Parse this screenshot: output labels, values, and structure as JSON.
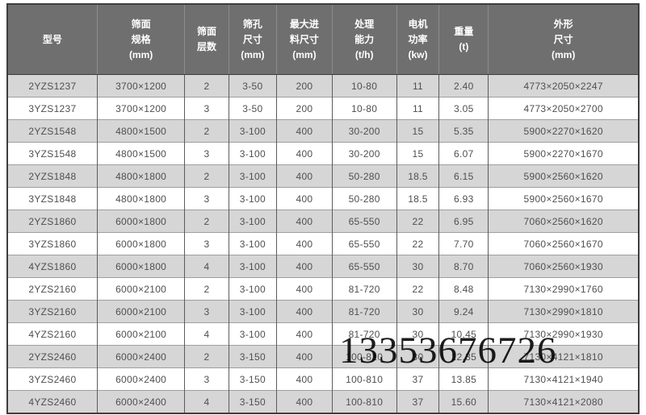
{
  "colors": {
    "header_bg": "#6f6f6f",
    "header_text": "#ffffff",
    "row_odd_bg": "#d6d6d6",
    "row_even_bg": "#ffffff",
    "cell_text": "#4f4f4f",
    "watermark_color": "#000000"
  },
  "watermark": {
    "text": "13353676726"
  },
  "table": {
    "columns": [
      {
        "id": "model",
        "label_lines": [
          "型号"
        ]
      },
      {
        "id": "screen-spec",
        "label_lines": [
          "筛面",
          "规格",
          "(mm)"
        ]
      },
      {
        "id": "deck-count",
        "label_lines": [
          "筛面",
          "层数"
        ]
      },
      {
        "id": "mesh-size",
        "label_lines": [
          "筛孔",
          "尺寸",
          "(mm)"
        ]
      },
      {
        "id": "max-feed",
        "label_lines": [
          "最大进",
          "料尺寸",
          "(mm)"
        ]
      },
      {
        "id": "capacity",
        "label_lines": [
          "处理",
          "能力",
          "(t/h)"
        ]
      },
      {
        "id": "motor-power",
        "label_lines": [
          "电机",
          "功率",
          "(kw)"
        ]
      },
      {
        "id": "weight",
        "label_lines": [
          "重量",
          "(t)"
        ]
      },
      {
        "id": "dimensions",
        "label_lines": [
          "外形",
          "尺寸",
          "(mm)"
        ]
      }
    ],
    "rows": [
      [
        "2YZS1237",
        "3700×1200",
        "2",
        "3-50",
        "200",
        "10-80",
        "11",
        "2.40",
        "4773×2050×2247"
      ],
      [
        "3YZS1237",
        "3700×1200",
        "3",
        "3-50",
        "200",
        "10-80",
        "11",
        "3.05",
        "4773×2050×2700"
      ],
      [
        "2YZS1548",
        "4800×1500",
        "2",
        "3-100",
        "400",
        "30-200",
        "15",
        "5.35",
        "5900×2270×1620"
      ],
      [
        "3YZS1548",
        "4800×1500",
        "3",
        "3-100",
        "400",
        "30-200",
        "15",
        "6.07",
        "5900×2270×1670"
      ],
      [
        "2YZS1848",
        "4800×1800",
        "2",
        "3-100",
        "400",
        "50-280",
        "18.5",
        "6.15",
        "5900×2560×1620"
      ],
      [
        "3YZS1848",
        "4800×1800",
        "3",
        "3-100",
        "400",
        "50-280",
        "18.5",
        "6.93",
        "5900×2560×1670"
      ],
      [
        "2YZS1860",
        "6000×1800",
        "2",
        "3-100",
        "400",
        "65-550",
        "22",
        "6.95",
        "7060×2560×1620"
      ],
      [
        "3YZS1860",
        "6000×1800",
        "3",
        "3-100",
        "400",
        "65-550",
        "22",
        "7.70",
        "7060×2560×1670"
      ],
      [
        "4YZS1860",
        "6000×1800",
        "4",
        "3-100",
        "400",
        "65-550",
        "30",
        "8.70",
        "7060×2560×1930"
      ],
      [
        "2YZS2160",
        "6000×2100",
        "2",
        "3-100",
        "400",
        "81-720",
        "22",
        "8.48",
        "7130×2990×1760"
      ],
      [
        "3YZS2160",
        "6000×2100",
        "3",
        "3-100",
        "400",
        "81-720",
        "30",
        "9.24",
        "7130×2990×1810"
      ],
      [
        "4YZS2160",
        "6000×2100",
        "4",
        "3-100",
        "400",
        "81-720",
        "30",
        "10.45",
        "7130×2990×1930"
      ],
      [
        "2YZS2460",
        "6000×2400",
        "2",
        "3-150",
        "400",
        "100-810",
        "30",
        "12.35",
        "7130×4121×1810"
      ],
      [
        "3YZS2460",
        "6000×2400",
        "3",
        "3-150",
        "400",
        "100-810",
        "37",
        "13.85",
        "7130×4121×1940"
      ],
      [
        "4YZS2460",
        "6000×2400",
        "4",
        "3-150",
        "400",
        "100-810",
        "37",
        "15.60",
        "7130×4121×2080"
      ]
    ]
  }
}
